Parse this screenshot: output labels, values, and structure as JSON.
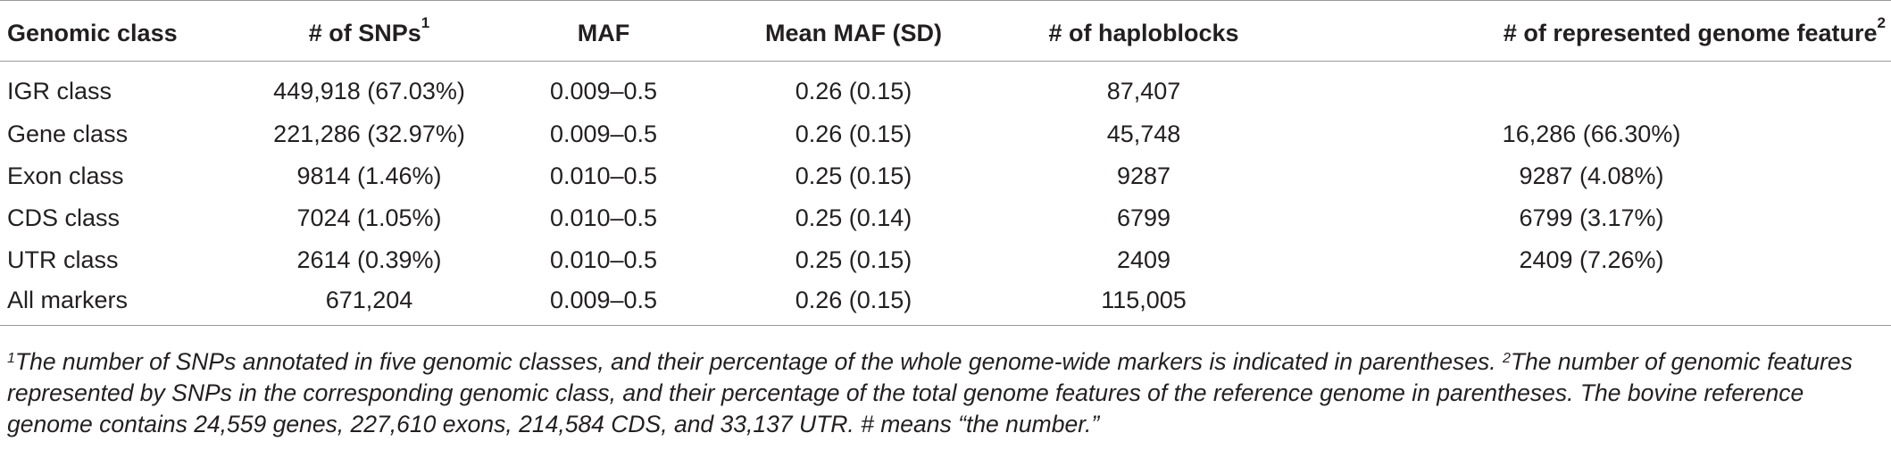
{
  "table": {
    "headers": [
      {
        "text": "Genomic class",
        "sup": ""
      },
      {
        "text": "# of SNPs",
        "sup": "1"
      },
      {
        "text": "MAF",
        "sup": ""
      },
      {
        "text": "Mean MAF (SD)",
        "sup": ""
      },
      {
        "text": "# of haploblocks",
        "sup": ""
      },
      {
        "text": "# of represented genome feature",
        "sup": "2"
      }
    ],
    "rows": [
      {
        "class": "IGR class",
        "snps": "449,918 (67.03%)",
        "maf": "0.009–0.5",
        "mean_maf": "0.26 (0.15)",
        "haploblocks": "87,407",
        "features": ""
      },
      {
        "class": "Gene class",
        "snps": "221,286 (32.97%)",
        "maf": "0.009–0.5",
        "mean_maf": "0.26 (0.15)",
        "haploblocks": "45,748",
        "features": "16,286 (66.30%)"
      },
      {
        "class": "Exon class",
        "snps": "9814 (1.46%)",
        "maf": "0.010–0.5",
        "mean_maf": "0.25 (0.15)",
        "haploblocks": "9287",
        "features": "9287 (4.08%)"
      },
      {
        "class": "CDS class",
        "snps": "7024 (1.05%)",
        "maf": "0.010–0.5",
        "mean_maf": "0.25 (0.14)",
        "haploblocks": "6799",
        "features": "6799 (3.17%)"
      },
      {
        "class": "UTR class",
        "snps": "2614 (0.39%)",
        "maf": "0.010–0.5",
        "mean_maf": "0.25 (0.15)",
        "haploblocks": "2409",
        "features": "2409 (7.26%)"
      },
      {
        "class": "All markers",
        "snps": "671,204",
        "maf": "0.009–0.5",
        "mean_maf": "0.26 (0.15)",
        "haploblocks": "115,005",
        "features": ""
      }
    ]
  },
  "footnote": {
    "sup1": "1",
    "text1": "The number of SNPs annotated in five genomic classes, and their percentage of the whole genome-wide markers is indicated in parentheses.",
    "sup2": "2",
    "text2": "The number of genomic features represented by SNPs in the corresponding genomic class, and their percentage of the total genome features of the reference genome in parentheses. The bovine reference genome contains 24,559 genes, 227,610 exons, 214,584 CDS, and 33,137 UTR. # means “the number.”"
  }
}
